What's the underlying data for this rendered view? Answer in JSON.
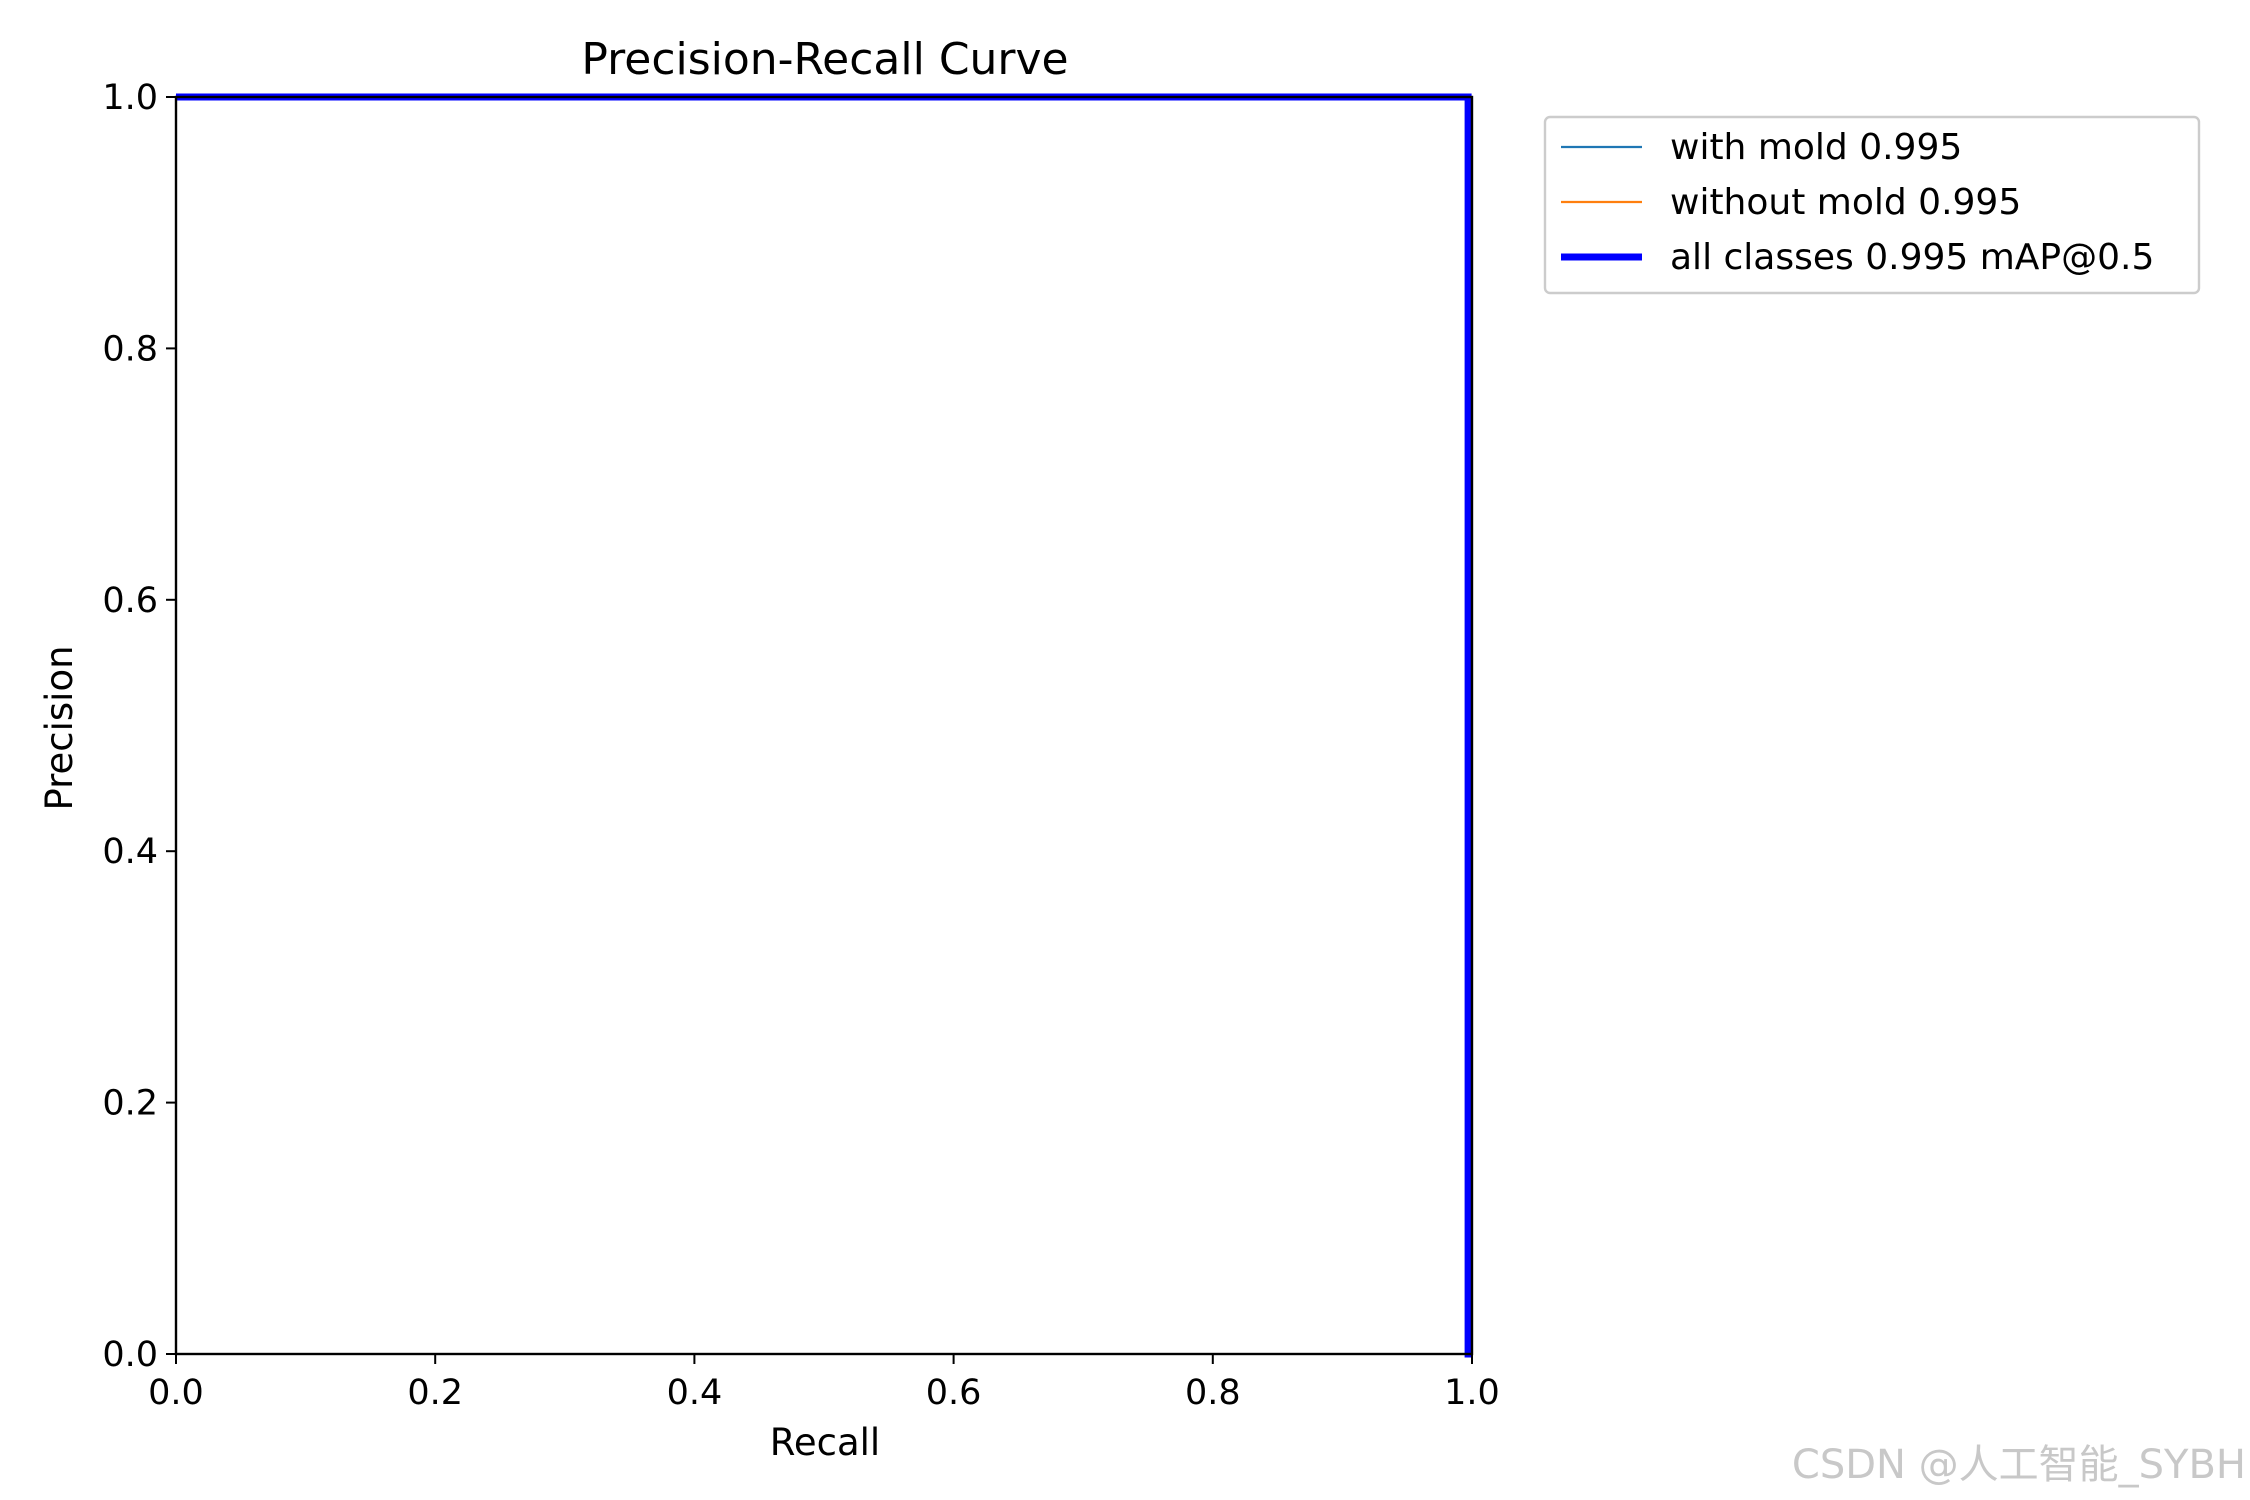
{
  "chart_data": {
    "type": "line",
    "title": "Precision-Recall Curve",
    "xlabel": "Recall",
    "ylabel": "Precision",
    "xlim": [
      0,
      1
    ],
    "ylim": [
      0,
      1
    ],
    "xticks": [
      "0.0",
      "0.2",
      "0.4",
      "0.6",
      "0.8",
      "1.0"
    ],
    "yticks": [
      "0.0",
      "0.2",
      "0.4",
      "0.6",
      "0.8",
      "1.0"
    ],
    "grid": false,
    "legend_placement": "outside-top-right",
    "series": [
      {
        "name": "with mold 0.995",
        "color": "#1f77b4",
        "x": [
          0,
          0.997,
          0.997,
          1.0
        ],
        "y": [
          1.0,
          1.0,
          0.0,
          0.0
        ]
      },
      {
        "name": "without mold 0.995",
        "color": "#ff7f0e",
        "x": [
          0,
          0.997,
          0.997,
          1.0
        ],
        "y": [
          1.0,
          1.0,
          0.0,
          0.0
        ]
      },
      {
        "name": "all classes 0.995 mAP@0.5",
        "color": "#0000ff",
        "x": [
          0,
          0.997,
          0.997,
          1.0
        ],
        "y": [
          1.0,
          1.0,
          0.0,
          0.0
        ]
      }
    ]
  },
  "watermark": "CSDN @人工智能_SYBH"
}
